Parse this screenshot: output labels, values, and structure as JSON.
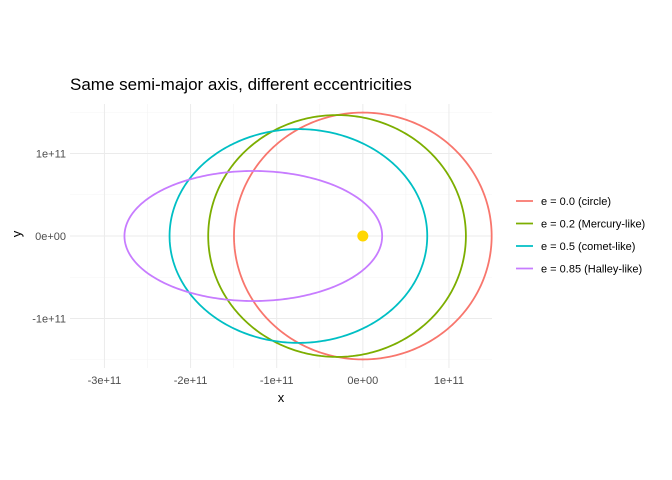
{
  "chart_data": {
    "type": "line",
    "title": "Same semi-major axis, different eccentricities",
    "xlabel": "x",
    "ylabel": "y",
    "xlim": [
      -340000000000.0,
      150000000000.0
    ],
    "ylim": [
      -160000000000.0,
      160000000000.0
    ],
    "x_ticks": [
      -300000000000.0,
      -200000000000.0,
      -100000000000.0,
      0,
      100000000000.0
    ],
    "x_tick_labels": [
      "-3e+11",
      "-2e+11",
      "-1e+11",
      "0e+00",
      "1e+11"
    ],
    "y_ticks": [
      -100000000000.0,
      0,
      100000000000.0
    ],
    "y_tick_labels": [
      "-1e+11",
      "0e+00",
      "1e+11"
    ],
    "grid": true,
    "legend_position": "right",
    "semi_major_axis": 149600000000.0,
    "focus": {
      "x": 0,
      "y": 0,
      "color": "#FFD700"
    },
    "series": [
      {
        "name": "e = 0.0 (circle)",
        "eccentricity": 0.0,
        "color": "#F8766D"
      },
      {
        "name": "e = 0.2 (Mercury-like)",
        "eccentricity": 0.2,
        "color": "#7CAE00"
      },
      {
        "name": "e = 0.5 (comet-like)",
        "eccentricity": 0.5,
        "color": "#00BFC4"
      },
      {
        "name": "e = 0.85 (Halley-like)",
        "eccentricity": 0.85,
        "color": "#C77CFF"
      }
    ]
  }
}
